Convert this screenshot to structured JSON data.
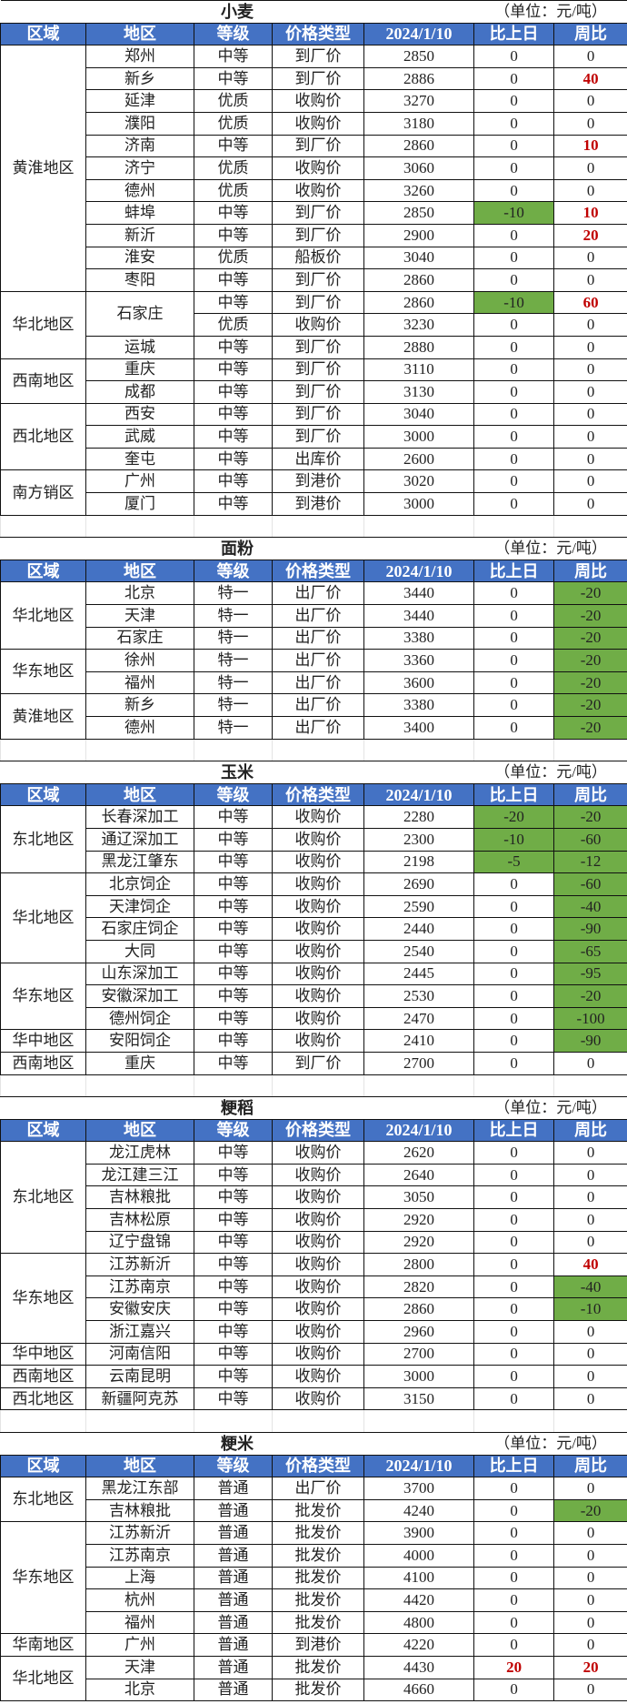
{
  "unit": "（单位：元/吨）",
  "headers": [
    "区域",
    "地区",
    "等级",
    "价格类型",
    "2024/1/10",
    "比上日",
    "周比"
  ],
  "colors": {
    "header_bg": "#4472c4",
    "decrease_bg": "#70ad47",
    "increase_text": "#c00000"
  },
  "tables": [
    {
      "title": "小麦",
      "groups": [
        {
          "region": "黄淮地区",
          "rows": [
            {
              "area": "郑州",
              "grade": "中等",
              "type": "到厂价",
              "price": "2850",
              "daily": "0",
              "weekly": "0"
            },
            {
              "area": "新乡",
              "grade": "中等",
              "type": "到厂价",
              "price": "2886",
              "daily": "0",
              "weekly": "40"
            },
            {
              "area": "延津",
              "grade": "优质",
              "type": "收购价",
              "price": "3270",
              "daily": "0",
              "weekly": "0"
            },
            {
              "area": "濮阳",
              "grade": "优质",
              "type": "收购价",
              "price": "3180",
              "daily": "0",
              "weekly": "0"
            },
            {
              "area": "济南",
              "grade": "中等",
              "type": "到厂价",
              "price": "2860",
              "daily": "0",
              "weekly": "10"
            },
            {
              "area": "济宁",
              "grade": "优质",
              "type": "收购价",
              "price": "3060",
              "daily": "0",
              "weekly": "0"
            },
            {
              "area": "德州",
              "grade": "优质",
              "type": "收购价",
              "price": "3260",
              "daily": "0",
              "weekly": "0"
            },
            {
              "area": "蚌埠",
              "grade": "中等",
              "type": "到厂价",
              "price": "2850",
              "daily": "-10",
              "weekly": "10"
            },
            {
              "area": "新沂",
              "grade": "中等",
              "type": "到厂价",
              "price": "2900",
              "daily": "0",
              "weekly": "20"
            },
            {
              "area": "淮安",
              "grade": "优质",
              "type": "船板价",
              "price": "3040",
              "daily": "0",
              "weekly": "0"
            },
            {
              "area": "枣阳",
              "grade": "中等",
              "type": "到厂价",
              "price": "2860",
              "daily": "0",
              "weekly": "0"
            }
          ]
        },
        {
          "region": "华北地区",
          "rows": [
            {
              "area": "石家庄",
              "grade": "中等",
              "type": "到厂价",
              "price": "2860",
              "daily": "-10",
              "weekly": "60"
            },
            {
              "grade": "优质",
              "type": "收购价",
              "price": "3230",
              "daily": "0",
              "weekly": "0"
            },
            {
              "area": "运城",
              "grade": "中等",
              "type": "到厂价",
              "price": "2880",
              "daily": "0",
              "weekly": "0"
            }
          ]
        },
        {
          "region": "西南地区",
          "rows": [
            {
              "area": "重庆",
              "grade": "中等",
              "type": "到厂价",
              "price": "3110",
              "daily": "0",
              "weekly": "0"
            },
            {
              "area": "成都",
              "grade": "中等",
              "type": "到厂价",
              "price": "3130",
              "daily": "0",
              "weekly": "0"
            }
          ]
        },
        {
          "region": "西北地区",
          "rows": [
            {
              "area": "西安",
              "grade": "中等",
              "type": "到厂价",
              "price": "3040",
              "daily": "0",
              "weekly": "0"
            },
            {
              "area": "武威",
              "grade": "中等",
              "type": "到厂价",
              "price": "3000",
              "daily": "0",
              "weekly": "0"
            },
            {
              "area": "奎屯",
              "grade": "中等",
              "type": "出库价",
              "price": "2600",
              "daily": "0",
              "weekly": "0"
            }
          ]
        },
        {
          "region": "南方销区",
          "rows": [
            {
              "area": "广州",
              "grade": "中等",
              "type": "到港价",
              "price": "3020",
              "daily": "0",
              "weekly": "0"
            },
            {
              "area": "厦门",
              "grade": "中等",
              "type": "到港价",
              "price": "3000",
              "daily": "0",
              "weekly": "0"
            }
          ]
        }
      ]
    },
    {
      "title": "面粉",
      "groups": [
        {
          "region": "华北地区",
          "rows": [
            {
              "area": "北京",
              "grade": "特一",
              "type": "出厂价",
              "price": "3440",
              "daily": "0",
              "weekly": "-20"
            },
            {
              "area": "天津",
              "grade": "特一",
              "type": "出厂价",
              "price": "3440",
              "daily": "0",
              "weekly": "-20"
            },
            {
              "area": "石家庄",
              "grade": "特一",
              "type": "出厂价",
              "price": "3380",
              "daily": "0",
              "weekly": "-20"
            }
          ]
        },
        {
          "region": "华东地区",
          "rows": [
            {
              "area": "徐州",
              "grade": "特一",
              "type": "出厂价",
              "price": "3360",
              "daily": "0",
              "weekly": "-20"
            },
            {
              "area": "福州",
              "grade": "特一",
              "type": "出厂价",
              "price": "3600",
              "daily": "0",
              "weekly": "-20"
            }
          ]
        },
        {
          "region": "黄淮地区",
          "rows": [
            {
              "area": "新乡",
              "grade": "特一",
              "type": "出厂价",
              "price": "3380",
              "daily": "0",
              "weekly": "-20"
            },
            {
              "area": "德州",
              "grade": "特一",
              "type": "出厂价",
              "price": "3400",
              "daily": "0",
              "weekly": "-20"
            }
          ]
        }
      ]
    },
    {
      "title": "玉米",
      "groups": [
        {
          "region": "东北地区",
          "rows": [
            {
              "area": "长春深加工",
              "grade": "中等",
              "type": "收购价",
              "price": "2280",
              "daily": "-20",
              "weekly": "-20"
            },
            {
              "area": "通辽深加工",
              "grade": "中等",
              "type": "收购价",
              "price": "2300",
              "daily": "-10",
              "weekly": "-60"
            },
            {
              "area": "黑龙江肇东",
              "grade": "中等",
              "type": "收购价",
              "price": "2198",
              "daily": "-5",
              "weekly": "-12"
            }
          ]
        },
        {
          "region": "华北地区",
          "rows": [
            {
              "area": "北京饲企",
              "grade": "中等",
              "type": "收购价",
              "price": "2690",
              "daily": "0",
              "weekly": "-60"
            },
            {
              "area": "天津饲企",
              "grade": "中等",
              "type": "收购价",
              "price": "2590",
              "daily": "0",
              "weekly": "-40"
            },
            {
              "area": "石家庄饲企",
              "grade": "中等",
              "type": "收购价",
              "price": "2440",
              "daily": "0",
              "weekly": "-90"
            },
            {
              "area": "大同",
              "grade": "中等",
              "type": "收购价",
              "price": "2540",
              "daily": "0",
              "weekly": "-65"
            }
          ]
        },
        {
          "region": "华东地区",
          "rows": [
            {
              "area": "山东深加工",
              "grade": "中等",
              "type": "收购价",
              "price": "2445",
              "daily": "0",
              "weekly": "-95"
            },
            {
              "area": "安徽深加工",
              "grade": "中等",
              "type": "收购价",
              "price": "2530",
              "daily": "0",
              "weekly": "-20"
            },
            {
              "area": "德州饲企",
              "grade": "中等",
              "type": "收购价",
              "price": "2470",
              "daily": "0",
              "weekly": "-100"
            }
          ]
        },
        {
          "region": "华中地区",
          "rows": [
            {
              "area": "安阳饲企",
              "grade": "中等",
              "type": "收购价",
              "price": "2410",
              "daily": "0",
              "weekly": "-90"
            }
          ]
        },
        {
          "region": "西南地区",
          "rows": [
            {
              "area": "重庆",
              "grade": "中等",
              "type": "到厂价",
              "price": "2700",
              "daily": "0",
              "weekly": "0"
            }
          ]
        }
      ]
    },
    {
      "title": "粳稻",
      "groups": [
        {
          "region": "东北地区",
          "rows": [
            {
              "area": "龙江虎林",
              "grade": "中等",
              "type": "收购价",
              "price": "2620",
              "daily": "0",
              "weekly": "0"
            },
            {
              "area": "龙江建三江",
              "grade": "中等",
              "type": "收购价",
              "price": "2640",
              "daily": "0",
              "weekly": "0"
            },
            {
              "area": "吉林粮批",
              "grade": "中等",
              "type": "收购价",
              "price": "3050",
              "daily": "0",
              "weekly": "0"
            },
            {
              "area": "吉林松原",
              "grade": "中等",
              "type": "收购价",
              "price": "2920",
              "daily": "0",
              "weekly": "0"
            },
            {
              "area": "辽宁盘锦",
              "grade": "中等",
              "type": "收购价",
              "price": "2920",
              "daily": "0",
              "weekly": "0"
            }
          ]
        },
        {
          "region": "华东地区",
          "rows": [
            {
              "area": "江苏新沂",
              "grade": "中等",
              "type": "收购价",
              "price": "2800",
              "daily": "0",
              "weekly": "40"
            },
            {
              "area": "江苏南京",
              "grade": "中等",
              "type": "收购价",
              "price": "2820",
              "daily": "0",
              "weekly": "-40"
            },
            {
              "area": "安徽安庆",
              "grade": "中等",
              "type": "收购价",
              "price": "2860",
              "daily": "0",
              "weekly": "-10"
            },
            {
              "area": "浙江嘉兴",
              "grade": "中等",
              "type": "收购价",
              "price": "2960",
              "daily": "0",
              "weekly": "0"
            }
          ]
        },
        {
          "region": "华中地区",
          "rows": [
            {
              "area": "河南信阳",
              "grade": "中等",
              "type": "收购价",
              "price": "2700",
              "daily": "0",
              "weekly": "0"
            }
          ]
        },
        {
          "region": "西南地区",
          "rows": [
            {
              "area": "云南昆明",
              "grade": "中等",
              "type": "收购价",
              "price": "3000",
              "daily": "0",
              "weekly": "0"
            }
          ]
        },
        {
          "region": "西北地区",
          "rows": [
            {
              "area": "新疆阿克苏",
              "grade": "中等",
              "type": "收购价",
              "price": "3150",
              "daily": "0",
              "weekly": "0"
            }
          ]
        }
      ]
    },
    {
      "title": "粳米",
      "groups": [
        {
          "region": "东北地区",
          "rows": [
            {
              "area": "黑龙江东部",
              "grade": "普通",
              "type": "出厂价",
              "price": "3700",
              "daily": "0",
              "weekly": "0"
            },
            {
              "area": "吉林粮批",
              "grade": "普通",
              "type": "批发价",
              "price": "4240",
              "daily": "0",
              "weekly": "-20"
            }
          ]
        },
        {
          "region": "华东地区",
          "rows": [
            {
              "area": "江苏新沂",
              "grade": "普通",
              "type": "批发价",
              "price": "3900",
              "daily": "0",
              "weekly": "0"
            },
            {
              "area": "江苏南京",
              "grade": "普通",
              "type": "批发价",
              "price": "4000",
              "daily": "0",
              "weekly": "0"
            },
            {
              "area": "上海",
              "grade": "普通",
              "type": "批发价",
              "price": "4100",
              "daily": "0",
              "weekly": "0"
            },
            {
              "area": "杭州",
              "grade": "普通",
              "type": "批发价",
              "price": "4420",
              "daily": "0",
              "weekly": "0"
            },
            {
              "area": "福州",
              "grade": "普通",
              "type": "批发价",
              "price": "4800",
              "daily": "0",
              "weekly": "0"
            }
          ]
        },
        {
          "region": "华南地区",
          "rows": [
            {
              "area": "广州",
              "grade": "普通",
              "type": "到港价",
              "price": "4220",
              "daily": "0",
              "weekly": "0"
            }
          ]
        },
        {
          "region": "华北地区",
          "rows": [
            {
              "area": "天津",
              "grade": "普通",
              "type": "批发价",
              "price": "4430",
              "daily": "20",
              "weekly": "20"
            },
            {
              "area": "北京",
              "grade": "普通",
              "type": "批发价",
              "price": "4660",
              "daily": "0",
              "weekly": "0"
            }
          ]
        }
      ]
    }
  ]
}
